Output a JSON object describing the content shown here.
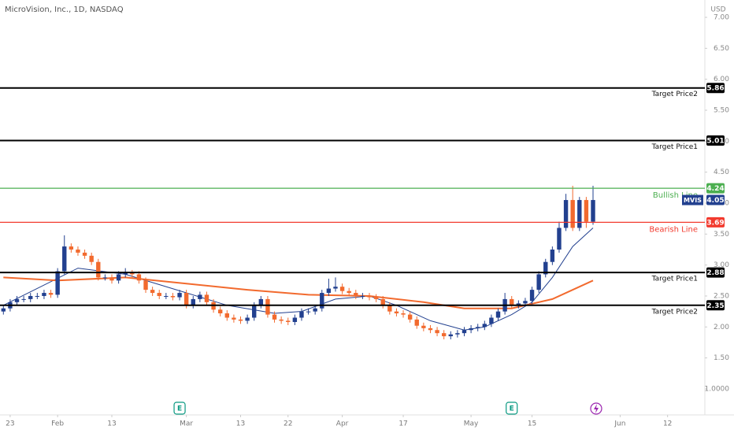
{
  "chart_data": {
    "type": "candlestick",
    "title": "MicroVision, Inc., 1D, NASDAQ",
    "currency": "USD",
    "ylim": [
      0.58,
      7.28
    ],
    "yticks": [
      {
        "value": 7,
        "label": "7.00"
      },
      {
        "value": 6.5,
        "label": "6.50"
      },
      {
        "value": 6,
        "label": "6.00"
      },
      {
        "value": 5.5,
        "label": "5.50"
      },
      {
        "value": 5,
        "label": "5.00"
      },
      {
        "value": 4.5,
        "label": "4.50"
      },
      {
        "value": 4,
        "label": "4.00"
      },
      {
        "value": 3.5,
        "label": "3.50"
      },
      {
        "value": 3,
        "label": "3.00"
      },
      {
        "value": 2.5,
        "label": "2.50"
      },
      {
        "value": 2,
        "label": "2.00"
      },
      {
        "value": 1.5,
        "label": "1.50"
      },
      {
        "value": 1,
        "label": "1.0000"
      }
    ],
    "xlim": [
      -0.5,
      103.5
    ],
    "xticks": [
      {
        "value": 1,
        "label": "23"
      },
      {
        "value": 8,
        "label": "Feb"
      },
      {
        "value": 16,
        "label": "13"
      },
      {
        "value": 27,
        "label": "Mar"
      },
      {
        "value": 35,
        "label": "13"
      },
      {
        "value": 42,
        "label": "22"
      },
      {
        "value": 50,
        "label": "Apr"
      },
      {
        "value": 59,
        "label": "17"
      },
      {
        "value": 69,
        "label": "May"
      },
      {
        "value": 78,
        "label": "15"
      },
      {
        "value": 91,
        "label": "Jun"
      },
      {
        "value": 98,
        "label": "12"
      }
    ],
    "up_color": "#22408f",
    "down_color": "#f26a2e",
    "candles": {
      "open": [
        2.25,
        2.3,
        2.4,
        2.45,
        2.45,
        2.5,
        2.5,
        2.55,
        2.52,
        2.9,
        3.3,
        3.25,
        3.2,
        3.15,
        3.05,
        2.8,
        2.8,
        2.75,
        2.85,
        2.88,
        2.85,
        2.75,
        2.6,
        2.55,
        2.5,
        2.5,
        2.48,
        2.55,
        2.35,
        2.45,
        2.52,
        2.4,
        2.28,
        2.22,
        2.15,
        2.12,
        2.1,
        2.15,
        2.35,
        2.45,
        2.2,
        2.12,
        2.1,
        2.08,
        2.15,
        2.25,
        2.25,
        2.3,
        2.55,
        2.62,
        2.65,
        2.58,
        2.55,
        2.5,
        2.5,
        2.48,
        2.45,
        2.35,
        2.25,
        2.22,
        2.2,
        2.12,
        2.02,
        1.98,
        1.95,
        1.9,
        1.85,
        1.88,
        1.9,
        1.95,
        1.98,
        2.0,
        2.05,
        2.15,
        2.25,
        2.45,
        2.35,
        2.38,
        2.42,
        2.6,
        2.85,
        3.05,
        3.25,
        3.6,
        4.05,
        3.6,
        4.05,
        3.7
      ],
      "high": [
        2.35,
        2.45,
        2.5,
        2.5,
        2.55,
        2.55,
        2.6,
        2.6,
        2.95,
        3.48,
        3.35,
        3.3,
        3.25,
        3.2,
        3.1,
        2.85,
        2.85,
        2.9,
        2.95,
        2.92,
        2.9,
        2.8,
        2.65,
        2.6,
        2.55,
        2.55,
        2.6,
        2.6,
        2.5,
        2.57,
        2.57,
        2.45,
        2.33,
        2.27,
        2.2,
        2.17,
        2.2,
        2.4,
        2.5,
        2.5,
        2.25,
        2.17,
        2.15,
        2.2,
        2.3,
        2.3,
        2.35,
        2.6,
        2.78,
        2.8,
        2.7,
        2.63,
        2.6,
        2.55,
        2.55,
        2.53,
        2.5,
        2.4,
        2.3,
        2.27,
        2.25,
        2.17,
        2.07,
        2.03,
        2.0,
        1.95,
        1.93,
        1.95,
        2.0,
        2.03,
        2.05,
        2.1,
        2.2,
        2.3,
        2.55,
        2.5,
        2.43,
        2.47,
        2.65,
        2.9,
        3.1,
        3.3,
        3.7,
        4.15,
        4.28,
        4.1,
        4.1,
        4.28
      ],
      "low": [
        2.2,
        2.25,
        2.35,
        2.4,
        2.4,
        2.45,
        2.45,
        2.47,
        2.47,
        2.85,
        3.2,
        3.15,
        3.1,
        3.0,
        2.75,
        2.75,
        2.7,
        2.7,
        2.8,
        2.8,
        2.7,
        2.55,
        2.5,
        2.45,
        2.45,
        2.43,
        2.43,
        2.3,
        2.3,
        2.4,
        2.35,
        2.23,
        2.17,
        2.1,
        2.07,
        2.05,
        2.05,
        2.1,
        2.3,
        2.15,
        2.07,
        2.05,
        2.03,
        2.03,
        2.1,
        2.2,
        2.2,
        2.25,
        2.5,
        2.57,
        2.53,
        2.5,
        2.45,
        2.45,
        2.43,
        2.4,
        2.3,
        2.2,
        2.17,
        2.15,
        2.07,
        1.97,
        1.93,
        1.9,
        1.85,
        1.8,
        1.8,
        1.83,
        1.85,
        1.9,
        1.93,
        1.95,
        2.0,
        2.1,
        2.2,
        2.3,
        2.3,
        2.33,
        2.37,
        2.55,
        2.8,
        3.0,
        3.2,
        3.55,
        3.55,
        3.55,
        3.6,
        3.65
      ],
      "close": [
        2.3,
        2.4,
        2.45,
        2.45,
        2.5,
        2.5,
        2.55,
        2.52,
        2.9,
        3.3,
        3.25,
        3.2,
        3.15,
        3.05,
        2.8,
        2.8,
        2.75,
        2.85,
        2.88,
        2.85,
        2.75,
        2.6,
        2.55,
        2.5,
        2.5,
        2.48,
        2.55,
        2.35,
        2.45,
        2.52,
        2.4,
        2.28,
        2.22,
        2.15,
        2.12,
        2.1,
        2.15,
        2.35,
        2.45,
        2.2,
        2.12,
        2.1,
        2.08,
        2.15,
        2.25,
        2.25,
        2.3,
        2.55,
        2.62,
        2.65,
        2.58,
        2.55,
        2.5,
        2.5,
        2.48,
        2.45,
        2.35,
        2.25,
        2.22,
        2.2,
        2.12,
        2.02,
        1.98,
        1.95,
        1.9,
        1.85,
        1.88,
        1.9,
        1.95,
        1.98,
        2.0,
        2.05,
        2.15,
        2.25,
        2.45,
        2.35,
        2.38,
        2.42,
        2.6,
        2.85,
        3.05,
        3.25,
        3.6,
        4.05,
        3.6,
        4.05,
        3.7,
        4.05
      ]
    },
    "moving_averages": [
      {
        "color": "#22408f",
        "x": [
          0,
          11,
          18,
          27,
          33,
          40,
          44,
          49,
          54,
          58,
          63,
          68,
          71,
          75,
          78,
          81,
          84,
          87
        ],
        "values": [
          2.35,
          2.95,
          2.85,
          2.55,
          2.35,
          2.22,
          2.25,
          2.45,
          2.5,
          2.35,
          2.1,
          1.95,
          2.0,
          2.2,
          2.4,
          2.8,
          3.3,
          3.6
        ]
      },
      {
        "color": "#f26a2e",
        "x": [
          0,
          8,
          18,
          27,
          36,
          45,
          54,
          62,
          68,
          75,
          81,
          87
        ],
        "values": [
          2.8,
          2.75,
          2.8,
          2.7,
          2.6,
          2.52,
          2.5,
          2.4,
          2.3,
          2.3,
          2.45,
          2.75
        ]
      }
    ],
    "levels": [
      {
        "name": "Target Price2",
        "value": 5.86,
        "color": "#000000"
      },
      {
        "name": "Target Price1",
        "value": 5.01,
        "color": "#000000"
      },
      {
        "name": "Bullish Line",
        "value": 4.24,
        "color": "#4caf50"
      },
      {
        "name": "Bearish Line",
        "value": 3.69,
        "color": "#f23a2e"
      },
      {
        "name": "Target Price1",
        "value": 2.88,
        "color": "#000000"
      },
      {
        "name": "Target Price2",
        "value": 2.35,
        "color": "#000000"
      }
    ],
    "last_price": {
      "symbol": "MVIS",
      "value": 4.05,
      "color": "#22408f"
    },
    "events": [
      {
        "label": "E",
        "x": 26
      },
      {
        "label": "E",
        "x": 75
      }
    ]
  }
}
